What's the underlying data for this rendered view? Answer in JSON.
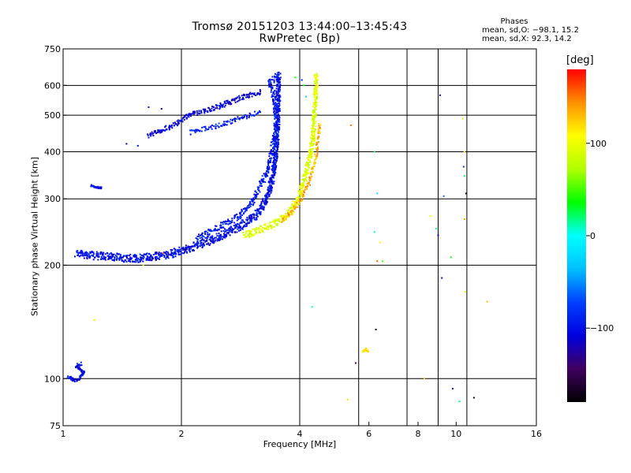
{
  "header": {
    "title_line1": "Tromsø 20151203 13:44:00–13:45:43",
    "title_line2": "RwPretec (Bp)"
  },
  "phases_box": {
    "heading": "Phases",
    "line_o": "mean, sd,O: −98.1, 15.2",
    "line_x": "mean, sd,X:  92.3, 14.2"
  },
  "colorbar": {
    "unit": "[deg]",
    "ticks": [
      {
        "label": "100",
        "value": 100
      },
      {
        "label": "0",
        "value": 0
      },
      {
        "label": "−100",
        "value": -100
      }
    ],
    "range": [
      -180,
      180
    ],
    "colormap": [
      "#000000",
      "#400060",
      "#0000dd",
      "#0040ff",
      "#00c0ff",
      "#00ffff",
      "#00ff00",
      "#b0ff00",
      "#ffff00",
      "#ff9000",
      "#ff0000"
    ]
  },
  "chart_data": {
    "type": "scatter",
    "title": "Tromsø 20151203 13:44:00–13:45:43",
    "subtitle": "RwPretec (Bp)",
    "xlabel": "Frequency [MHz]",
    "ylabel": "Stationary phase Virtual Height [km]",
    "x_scale": "log",
    "y_scale": "log",
    "xlim": [
      1,
      16
    ],
    "ylim": [
      75,
      750
    ],
    "x_ticks": [
      {
        "label": "1",
        "value": 1
      },
      {
        "label": "2",
        "value": 2
      },
      {
        "label": "4",
        "value": 4
      },
      {
        "label": "6",
        "value": 6
      },
      {
        "label": "8",
        "value": 8
      },
      {
        "label": "10",
        "value": 10
      },
      {
        "label": "16",
        "value": 16
      }
    ],
    "x_grid": [
      2,
      4,
      5.65,
      7.5,
      9,
      10.65
    ],
    "y_ticks": [
      {
        "label": "750",
        "value": 750
      },
      {
        "label": "600",
        "value": 600
      },
      {
        "label": "500",
        "value": 500
      },
      {
        "label": "400",
        "value": 400
      },
      {
        "label": "300",
        "value": 300
      },
      {
        "label": "200",
        "value": 200
      },
      {
        "label": "100",
        "value": 100
      },
      {
        "label": "75",
        "value": 75
      }
    ],
    "y_grid": [
      600,
      500,
      400,
      300,
      200,
      100
    ],
    "grid": true,
    "color_encodes": "phase [deg]",
    "traces": [
      {
        "name": "",
        "phase": -100,
        "spread": 2.6,
        "repeat": 5,
        "points": [
          [
            1.08,
            215
          ],
          [
            1.2,
            212
          ],
          [
            1.35,
            210
          ],
          [
            1.5,
            208
          ],
          [
            1.7,
            210
          ],
          [
            1.9,
            215
          ],
          [
            2.1,
            222
          ],
          [
            2.3,
            230
          ],
          [
            2.5,
            238
          ],
          [
            2.7,
            248
          ],
          [
            2.9,
            258
          ],
          [
            3.1,
            272
          ],
          [
            3.25,
            292
          ],
          [
            3.35,
            315
          ],
          [
            3.42,
            345
          ],
          [
            3.47,
            390
          ],
          [
            3.5,
            440
          ],
          [
            3.52,
            500
          ],
          [
            3.53,
            560
          ],
          [
            3.53,
            640
          ]
        ]
      },
      {
        "name": "",
        "phase": -95,
        "spread": 2.2,
        "repeat": 3,
        "points": [
          [
            2.2,
            238
          ],
          [
            2.5,
            252
          ],
          [
            2.8,
            270
          ],
          [
            3.0,
            290
          ],
          [
            3.15,
            320
          ],
          [
            3.3,
            350
          ],
          [
            3.4,
            400
          ],
          [
            3.48,
            470
          ],
          [
            3.45,
            560
          ],
          [
            3.35,
            610
          ],
          [
            3.5,
            630
          ],
          [
            3.58,
            640
          ]
        ]
      },
      {
        "name": "",
        "phase": 92,
        "spread": 2.4,
        "repeat": 4,
        "points": [
          [
            2.9,
            240
          ],
          [
            3.1,
            246
          ],
          [
            3.3,
            252
          ],
          [
            3.5,
            260
          ],
          [
            3.7,
            270
          ],
          [
            3.85,
            285
          ],
          [
            3.95,
            300
          ],
          [
            4.05,
            320
          ],
          [
            4.15,
            350
          ],
          [
            4.25,
            390
          ],
          [
            4.32,
            430
          ],
          [
            4.35,
            480
          ],
          [
            4.38,
            540
          ],
          [
            4.4,
            600
          ],
          [
            4.4,
            650
          ]
        ]
      },
      {
        "name": "",
        "phase": 135,
        "spread": 1.6,
        "repeat": 2,
        "points": [
          [
            3.6,
            262
          ],
          [
            3.8,
            275
          ],
          [
            4.0,
            295
          ],
          [
            4.2,
            325
          ],
          [
            4.38,
            380
          ],
          [
            4.45,
            430
          ],
          [
            4.5,
            480
          ]
        ]
      },
      {
        "name": "",
        "phase": -108,
        "spread": 1.6,
        "repeat": 3,
        "points": [
          [
            1.65,
            440
          ],
          [
            1.9,
            470
          ],
          [
            2.1,
            500
          ],
          [
            2.4,
            520
          ],
          [
            2.7,
            545
          ],
          [
            2.9,
            560
          ],
          [
            3.1,
            570
          ],
          [
            3.2,
            580
          ]
        ]
      },
      {
        "name": "",
        "phase": -92,
        "spread": 1.4,
        "repeat": 2,
        "points": [
          [
            2.1,
            450
          ],
          [
            2.5,
            470
          ],
          [
            2.8,
            490
          ],
          [
            3.0,
            500
          ],
          [
            3.2,
            510
          ]
        ]
      },
      {
        "name": "",
        "phase": -104,
        "spread": 1.0,
        "repeat": 3,
        "points": [
          [
            1.03,
            101
          ],
          [
            1.07,
            99
          ],
          [
            1.1,
            100
          ],
          [
            1.13,
            104
          ],
          [
            1.08,
            108
          ],
          [
            1.12,
            110
          ]
        ]
      },
      {
        "name": "",
        "phase": -102,
        "spread": 0.6,
        "repeat": 3,
        "points": [
          [
            1.18,
            325
          ],
          [
            1.22,
            322
          ],
          [
            1.26,
            320
          ]
        ]
      },
      {
        "name": "",
        "phase": 112,
        "spread": 0.6,
        "repeat": 3,
        "points": [
          [
            5.8,
            118
          ],
          [
            5.9,
            120
          ],
          [
            6.0,
            117
          ]
        ]
      }
    ],
    "scatter_points": [
      [
        1.45,
        420,
        -110
      ],
      [
        1.55,
        415,
        -100
      ],
      [
        1.65,
        525,
        -95
      ],
      [
        1.6,
        200,
        95
      ],
      [
        1.78,
        520,
        -120
      ],
      [
        1.8,
        215,
        150
      ],
      [
        1.2,
        143,
        110
      ],
      [
        4.05,
        620,
        -90
      ],
      [
        4.1,
        600,
        30
      ],
      [
        4.15,
        560,
        -20
      ],
      [
        4.0,
        385,
        -70
      ],
      [
        3.9,
        630,
        40
      ],
      [
        4.3,
        155,
        10
      ],
      [
        5.3,
        88,
        120
      ],
      [
        5.55,
        110,
        -140
      ],
      [
        5.4,
        470,
        150
      ],
      [
        6.2,
        400,
        20
      ],
      [
        6.3,
        310,
        -10
      ],
      [
        6.2,
        245,
        10
      ],
      [
        6.4,
        230,
        110
      ],
      [
        6.3,
        205,
        160
      ],
      [
        6.5,
        205,
        50
      ],
      [
        6.25,
        135,
        -170
      ],
      [
        8.3,
        100,
        130
      ],
      [
        8.6,
        270,
        100
      ],
      [
        8.9,
        250,
        20
      ],
      [
        9.0,
        240,
        -110
      ],
      [
        9.1,
        565,
        -120
      ],
      [
        9.2,
        185,
        -100
      ],
      [
        9.3,
        305,
        -60
      ],
      [
        9.8,
        94,
        -125
      ],
      [
        10.2,
        87,
        20
      ],
      [
        10.4,
        490,
        90
      ],
      [
        10.5,
        400,
        110
      ],
      [
        10.45,
        365,
        -80
      ],
      [
        10.5,
        345,
        20
      ],
      [
        10.6,
        310,
        -170
      ],
      [
        10.5,
        265,
        140
      ],
      [
        10.55,
        170,
        100
      ],
      [
        11.1,
        89,
        -170
      ],
      [
        12.0,
        160,
        130
      ],
      [
        9.7,
        210,
        40
      ]
    ]
  }
}
